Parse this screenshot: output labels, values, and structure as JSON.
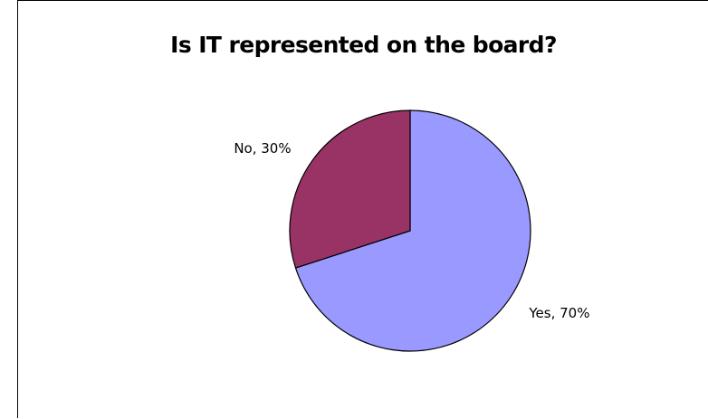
{
  "chart_data": {
    "type": "pie",
    "title": "Is IT represented on the board?",
    "slices": [
      {
        "label": "Yes",
        "value": 70,
        "display": "Yes, 70%",
        "color": "#9999ff"
      },
      {
        "label": "No",
        "value": 30,
        "display": "No, 30%",
        "color": "#993366"
      }
    ],
    "start_angle_deg": 0,
    "direction": "clockwise",
    "legend": "none"
  }
}
